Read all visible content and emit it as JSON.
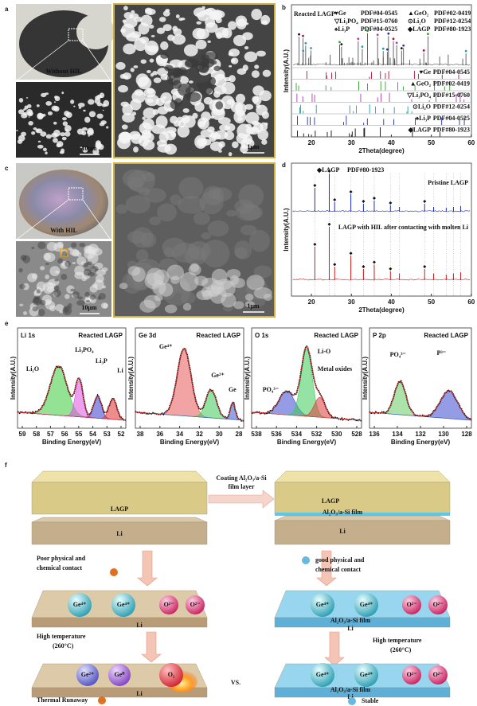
{
  "a": {
    "label": "a",
    "photo_caption": "Without HIL",
    "scale_bar_small": "10μm",
    "scale_bar_large": "1μm"
  },
  "b": {
    "label": "b",
    "title": "Reacted LAGP",
    "phases": [
      {
        "name": "♥Ge",
        "pdf": "PDF#04-0545",
        "color": "#b0103a"
      },
      {
        "name": "▲GeO₂",
        "pdf": "PDF#02-0419",
        "color": "#2ca02c"
      },
      {
        "name": "▽Li₃PO₄",
        "pdf": "PDF#15-0760",
        "color": "#b03ab0"
      },
      {
        "name": "⊙Li₂O",
        "pdf": "PDF#12-0254",
        "color": "#22a0a0"
      },
      {
        "name": "♠Li₃P",
        "pdf": "PDF#04-0525",
        "color": "#2233aa"
      },
      {
        "name": "◆LAGP",
        "pdf": "PDF#80-1923",
        "color": "#111111"
      }
    ],
    "xticks": [
      20,
      30,
      40,
      50,
      60
    ],
    "xlabel": "2Theta(degree)",
    "ylabel": "Intensity(A.U.)"
  },
  "c": {
    "label": "c",
    "photo_caption": "With HIL",
    "scale_bar_small": "10μm",
    "scale_bar_large": "1μm"
  },
  "d": {
    "label": "d",
    "reference": "◆LAGP",
    "pdf": "PDF#80-1923",
    "patterns": [
      {
        "name": "Pristine LAGP",
        "color": "#1a2fc0"
      },
      {
        "name": "LAGP with HIL after contacting with molten Li",
        "color": "#cc1a1a"
      }
    ],
    "xticks": [
      20,
      30,
      40,
      50,
      60
    ],
    "xlabel": "2Theta(degree)",
    "ylabel": "Intensity(A.U.)"
  },
  "e": {
    "label": "e",
    "xlabel": "Binding Energy(eV)",
    "ylabel": "Intensity(A.U.)",
    "spectra": [
      {
        "region": "Li 1s",
        "sample": "Reacted LAGP",
        "xticks": [
          59,
          58,
          57,
          56,
          55,
          54,
          53,
          52
        ],
        "peaks": [
          "Li₂O",
          "Li₃PO₄",
          "Li₃P",
          "Li"
        ]
      },
      {
        "region": "Ge 3d",
        "sample": "Reacted LAGP",
        "xticks": [
          38,
          36,
          34,
          32,
          30,
          28
        ],
        "peaks": [
          "Ge⁴⁺",
          "Ge²⁺",
          "Ge"
        ]
      },
      {
        "region": "O 1s",
        "sample": "Reacted LAGP",
        "xticks": [
          538,
          536,
          534,
          532,
          530,
          528
        ],
        "peaks": [
          "PO₄³⁻",
          "Li-O",
          "Metal oxides"
        ]
      },
      {
        "region": "P 2p",
        "sample": "Reacted LAGP",
        "xticks": [
          136,
          134,
          132,
          130,
          128
        ],
        "peaks": [
          "PO₄³⁻",
          "P³⁻"
        ]
      }
    ]
  },
  "f": {
    "label": "f",
    "lagp": "LAGP",
    "li": "Li",
    "coating": [
      "Coating Al₂O₃/a-Si",
      "film layer"
    ],
    "film": "Al₂O₃/a-Si film",
    "poor_contact": [
      "Poor physical and",
      "chemical contact"
    ],
    "good_contact": [
      "good physical and",
      "chemical contact"
    ],
    "heating": [
      "High temperature",
      "(260°C)"
    ],
    "ions_before": [
      "Ge⁴⁺",
      "Ge⁴⁺",
      "O²⁻",
      "O²⁻"
    ],
    "ions_after_bare": [
      "Ge²⁺",
      "Ge⁰",
      "O₂"
    ],
    "ions_after_coated": [
      "Ge⁴⁺",
      "Ge⁴⁺",
      "O²⁻",
      "O²⁻"
    ],
    "failure": "Thermal Runaway",
    "versus": "VS.",
    "success": "Stable"
  }
}
